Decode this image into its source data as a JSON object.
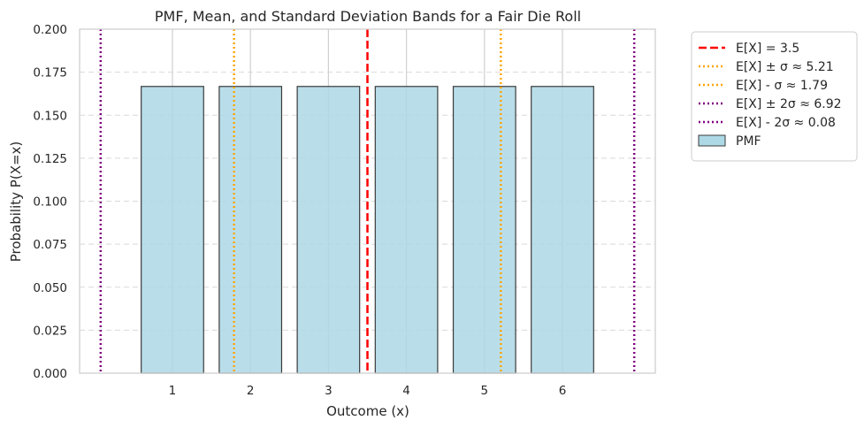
{
  "chart_data": {
    "type": "bar",
    "title": "PMF, Mean, and Standard Deviation Bands for a Fair Die Roll",
    "xlabel": "Outcome (x)",
    "ylabel": "Probability P(X=x)",
    "categories": [
      1,
      2,
      3,
      4,
      5,
      6
    ],
    "values": [
      0.1667,
      0.1667,
      0.1667,
      0.1667,
      0.1667,
      0.1667
    ],
    "xlim": [
      -0.19,
      7.19
    ],
    "ylim": [
      0,
      0.2
    ],
    "yticks": [
      "0.000",
      "0.025",
      "0.050",
      "0.075",
      "0.100",
      "0.125",
      "0.150",
      "0.175",
      "0.200"
    ],
    "xticks": [
      "1",
      "2",
      "3",
      "4",
      "5",
      "6"
    ],
    "bar_color": "#add8e6",
    "bar_edge": "#3a3a3a",
    "grid": true,
    "legend_placement": "outside upper right",
    "vlines": [
      {
        "x": 3.5,
        "label": "E[X] = 3.5",
        "color": "#ff0000",
        "style": "dashed"
      },
      {
        "x": 5.21,
        "label": "E[X] ± σ ≈ 5.21",
        "color": "#ffa500",
        "style": "dotted"
      },
      {
        "x": 1.79,
        "label": "E[X] - σ ≈ 1.79",
        "color": "#ffa500",
        "style": "dotted"
      },
      {
        "x": 6.92,
        "label": "E[X] ± 2σ ≈ 6.92",
        "color": "#800080",
        "style": "dotted"
      },
      {
        "x": 0.08,
        "label": "E[X] - 2σ ≈ 0.08",
        "color": "#800080",
        "style": "dotted"
      }
    ],
    "bar_legend_label": "PMF"
  }
}
